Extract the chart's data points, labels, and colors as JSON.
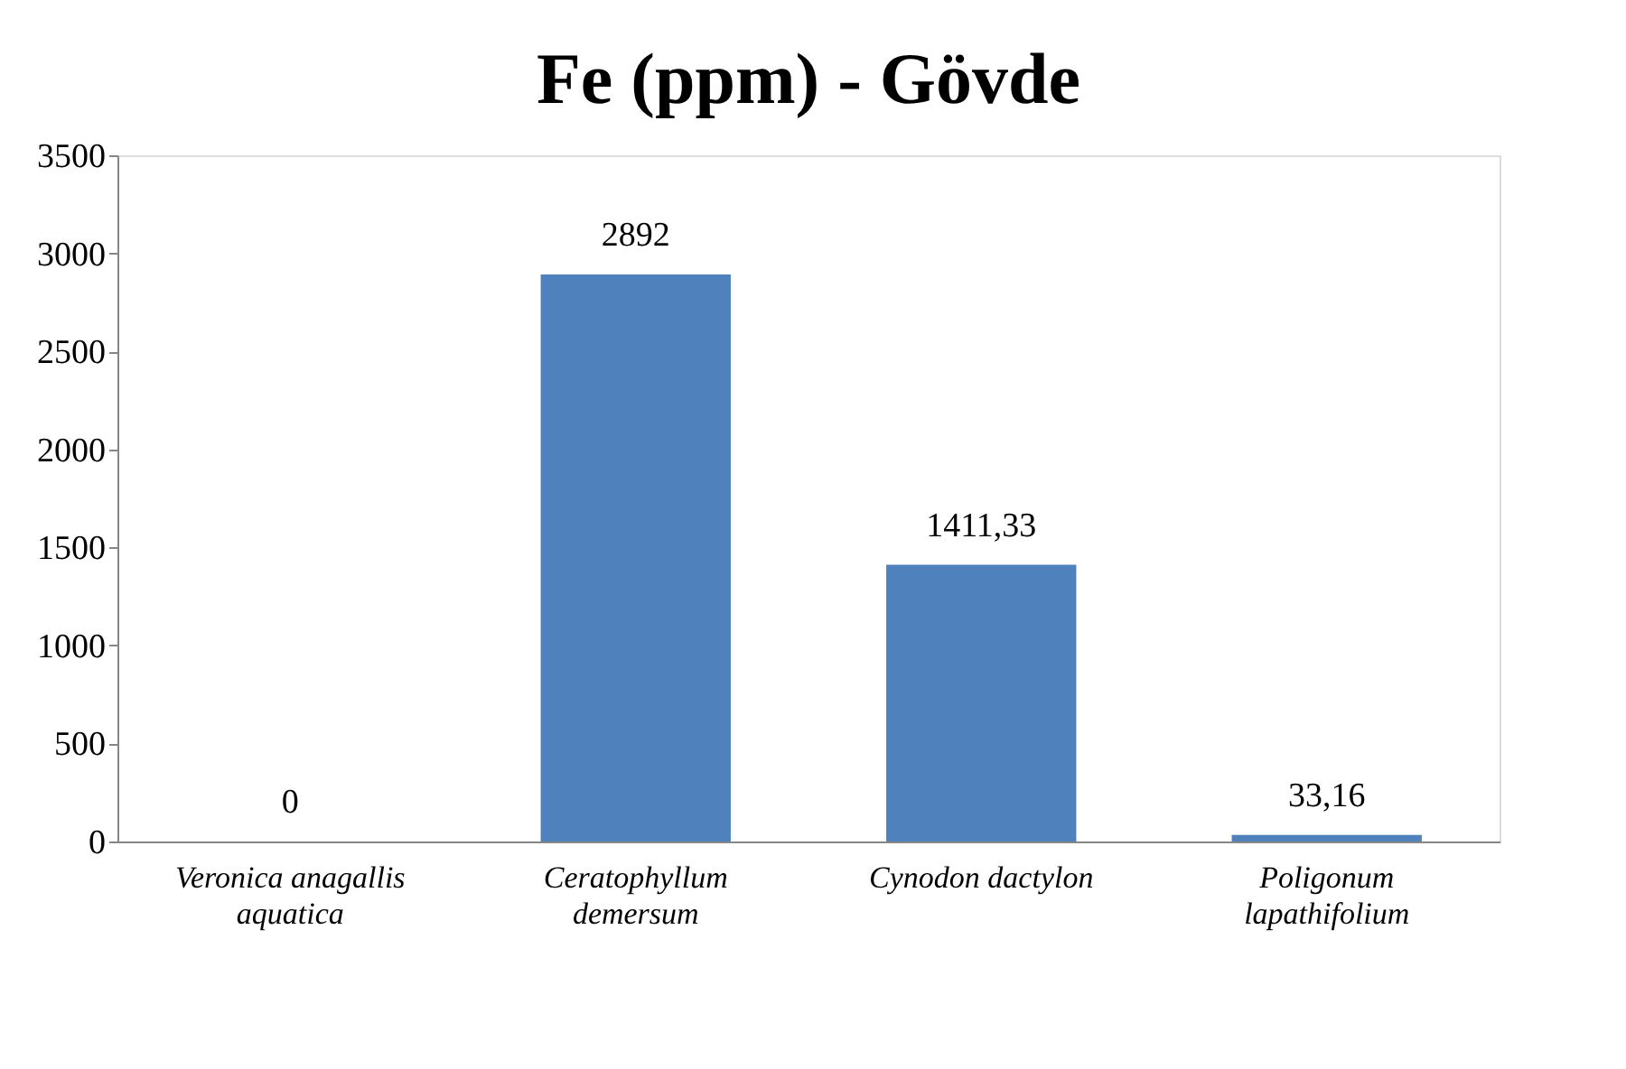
{
  "chart_data": {
    "type": "bar",
    "title": "Fe (ppm) - Gövde",
    "categories": [
      "Veronica anagallis aquatica",
      "Ceratophyllum demersum",
      "Cynodon dactylon",
      "Poligonum lapathifolium"
    ],
    "values": [
      0,
      2892,
      1411.33,
      33.16
    ],
    "value_labels": [
      "0",
      "2892",
      "1411,33",
      "33,16"
    ],
    "color": "#4f81bd",
    "ylim": [
      0,
      3500
    ],
    "yticks": [
      0,
      500,
      1000,
      1500,
      2000,
      2500,
      3000,
      3500
    ],
    "grid": false
  }
}
